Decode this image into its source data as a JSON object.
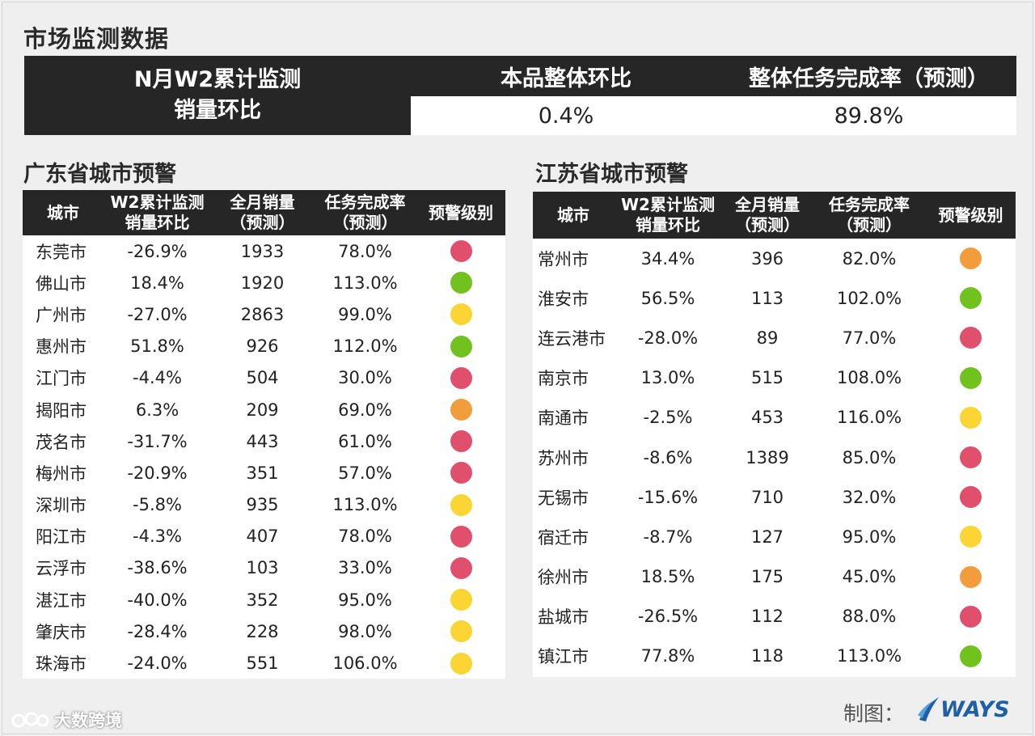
{
  "title": "市场监测数据",
  "summary": {
    "left_line1": "N月W2累计监测",
    "left_line2": "销量环比",
    "col1_header": "本品整体环比",
    "col1_value": "0.4%",
    "col2_header": "整体任务完成率（预测）",
    "col2_value": "89.8%"
  },
  "colors": {
    "red": "#e0506c",
    "green": "#72c21f",
    "yellow": "#fbd533",
    "orange": "#f29d3c"
  },
  "guangdong": {
    "title": "广东省城市预警",
    "headers": {
      "city": "城市",
      "mom_l1": "W2累计监测",
      "mom_l2": "销量环比",
      "sales_l1": "全月销量",
      "sales_l2": "（预测）",
      "rate_l1": "任务完成率",
      "rate_l2": "（预测）",
      "level": "预警级别"
    },
    "rows": [
      {
        "city": "东莞市",
        "mom": "-26.9%",
        "sales": "1933",
        "rate": "78.0%",
        "level": "red"
      },
      {
        "city": "佛山市",
        "mom": "18.4%",
        "sales": "1920",
        "rate": "113.0%",
        "level": "green"
      },
      {
        "city": "广州市",
        "mom": "-27.0%",
        "sales": "2863",
        "rate": "99.0%",
        "level": "yellow"
      },
      {
        "city": "惠州市",
        "mom": "51.8%",
        "sales": "926",
        "rate": "112.0%",
        "level": "green"
      },
      {
        "city": "江门市",
        "mom": "-4.4%",
        "sales": "504",
        "rate": "30.0%",
        "level": "red"
      },
      {
        "city": "揭阳市",
        "mom": "6.3%",
        "sales": "209",
        "rate": "69.0%",
        "level": "orange"
      },
      {
        "city": "茂名市",
        "mom": "-31.7%",
        "sales": "443",
        "rate": "61.0%",
        "level": "red"
      },
      {
        "city": "梅州市",
        "mom": "-20.9%",
        "sales": "351",
        "rate": "57.0%",
        "level": "red"
      },
      {
        "city": "深圳市",
        "mom": "-5.8%",
        "sales": "935",
        "rate": "113.0%",
        "level": "yellow"
      },
      {
        "city": "阳江市",
        "mom": "-4.3%",
        "sales": "407",
        "rate": "78.0%",
        "level": "red"
      },
      {
        "city": "云浮市",
        "mom": "-38.6%",
        "sales": "103",
        "rate": "33.0%",
        "level": "red"
      },
      {
        "city": "湛江市",
        "mom": "-40.0%",
        "sales": "352",
        "rate": "95.0%",
        "level": "yellow"
      },
      {
        "city": "肇庆市",
        "mom": "-28.4%",
        "sales": "228",
        "rate": "98.0%",
        "level": "yellow"
      },
      {
        "city": "珠海市",
        "mom": "-24.0%",
        "sales": "551",
        "rate": "106.0%",
        "level": "yellow"
      }
    ]
  },
  "jiangsu": {
    "title": "江苏省城市预警",
    "headers": {
      "city": "城市",
      "mom_l1": "W2累计监测",
      "mom_l2": "销量环比",
      "sales_l1": "全月销量",
      "sales_l2": "（预测）",
      "rate_l1": "任务完成率",
      "rate_l2": "（预测）",
      "level": "预警级别"
    },
    "rows": [
      {
        "city": "常州市",
        "mom": "34.4%",
        "sales": "396",
        "rate": "82.0%",
        "level": "orange"
      },
      {
        "city": "淮安市",
        "mom": "56.5%",
        "sales": "113",
        "rate": "102.0%",
        "level": "green"
      },
      {
        "city": "连云港市",
        "mom": "-28.0%",
        "sales": "89",
        "rate": "77.0%",
        "level": "red"
      },
      {
        "city": "南京市",
        "mom": "13.0%",
        "sales": "515",
        "rate": "108.0%",
        "level": "green"
      },
      {
        "city": "南通市",
        "mom": "-2.5%",
        "sales": "453",
        "rate": "116.0%",
        "level": "yellow"
      },
      {
        "city": "苏州市",
        "mom": "-8.6%",
        "sales": "1389",
        "rate": "85.0%",
        "level": "red"
      },
      {
        "city": "无锡市",
        "mom": "-15.6%",
        "sales": "710",
        "rate": "32.0%",
        "level": "red"
      },
      {
        "city": "宿迁市",
        "mom": "-8.7%",
        "sales": "127",
        "rate": "95.0%",
        "level": "yellow"
      },
      {
        "city": "徐州市",
        "mom": "18.5%",
        "sales": "175",
        "rate": "45.0%",
        "level": "orange"
      },
      {
        "city": "盐城市",
        "mom": "-26.5%",
        "sales": "112",
        "rate": "88.0%",
        "level": "red"
      },
      {
        "city": "镇江市",
        "mom": "77.8%",
        "sales": "118",
        "rate": "113.0%",
        "level": "green"
      }
    ]
  },
  "footer": {
    "credit": "制图：",
    "logo_text": "WAYS",
    "watermark": "大数跨境"
  }
}
